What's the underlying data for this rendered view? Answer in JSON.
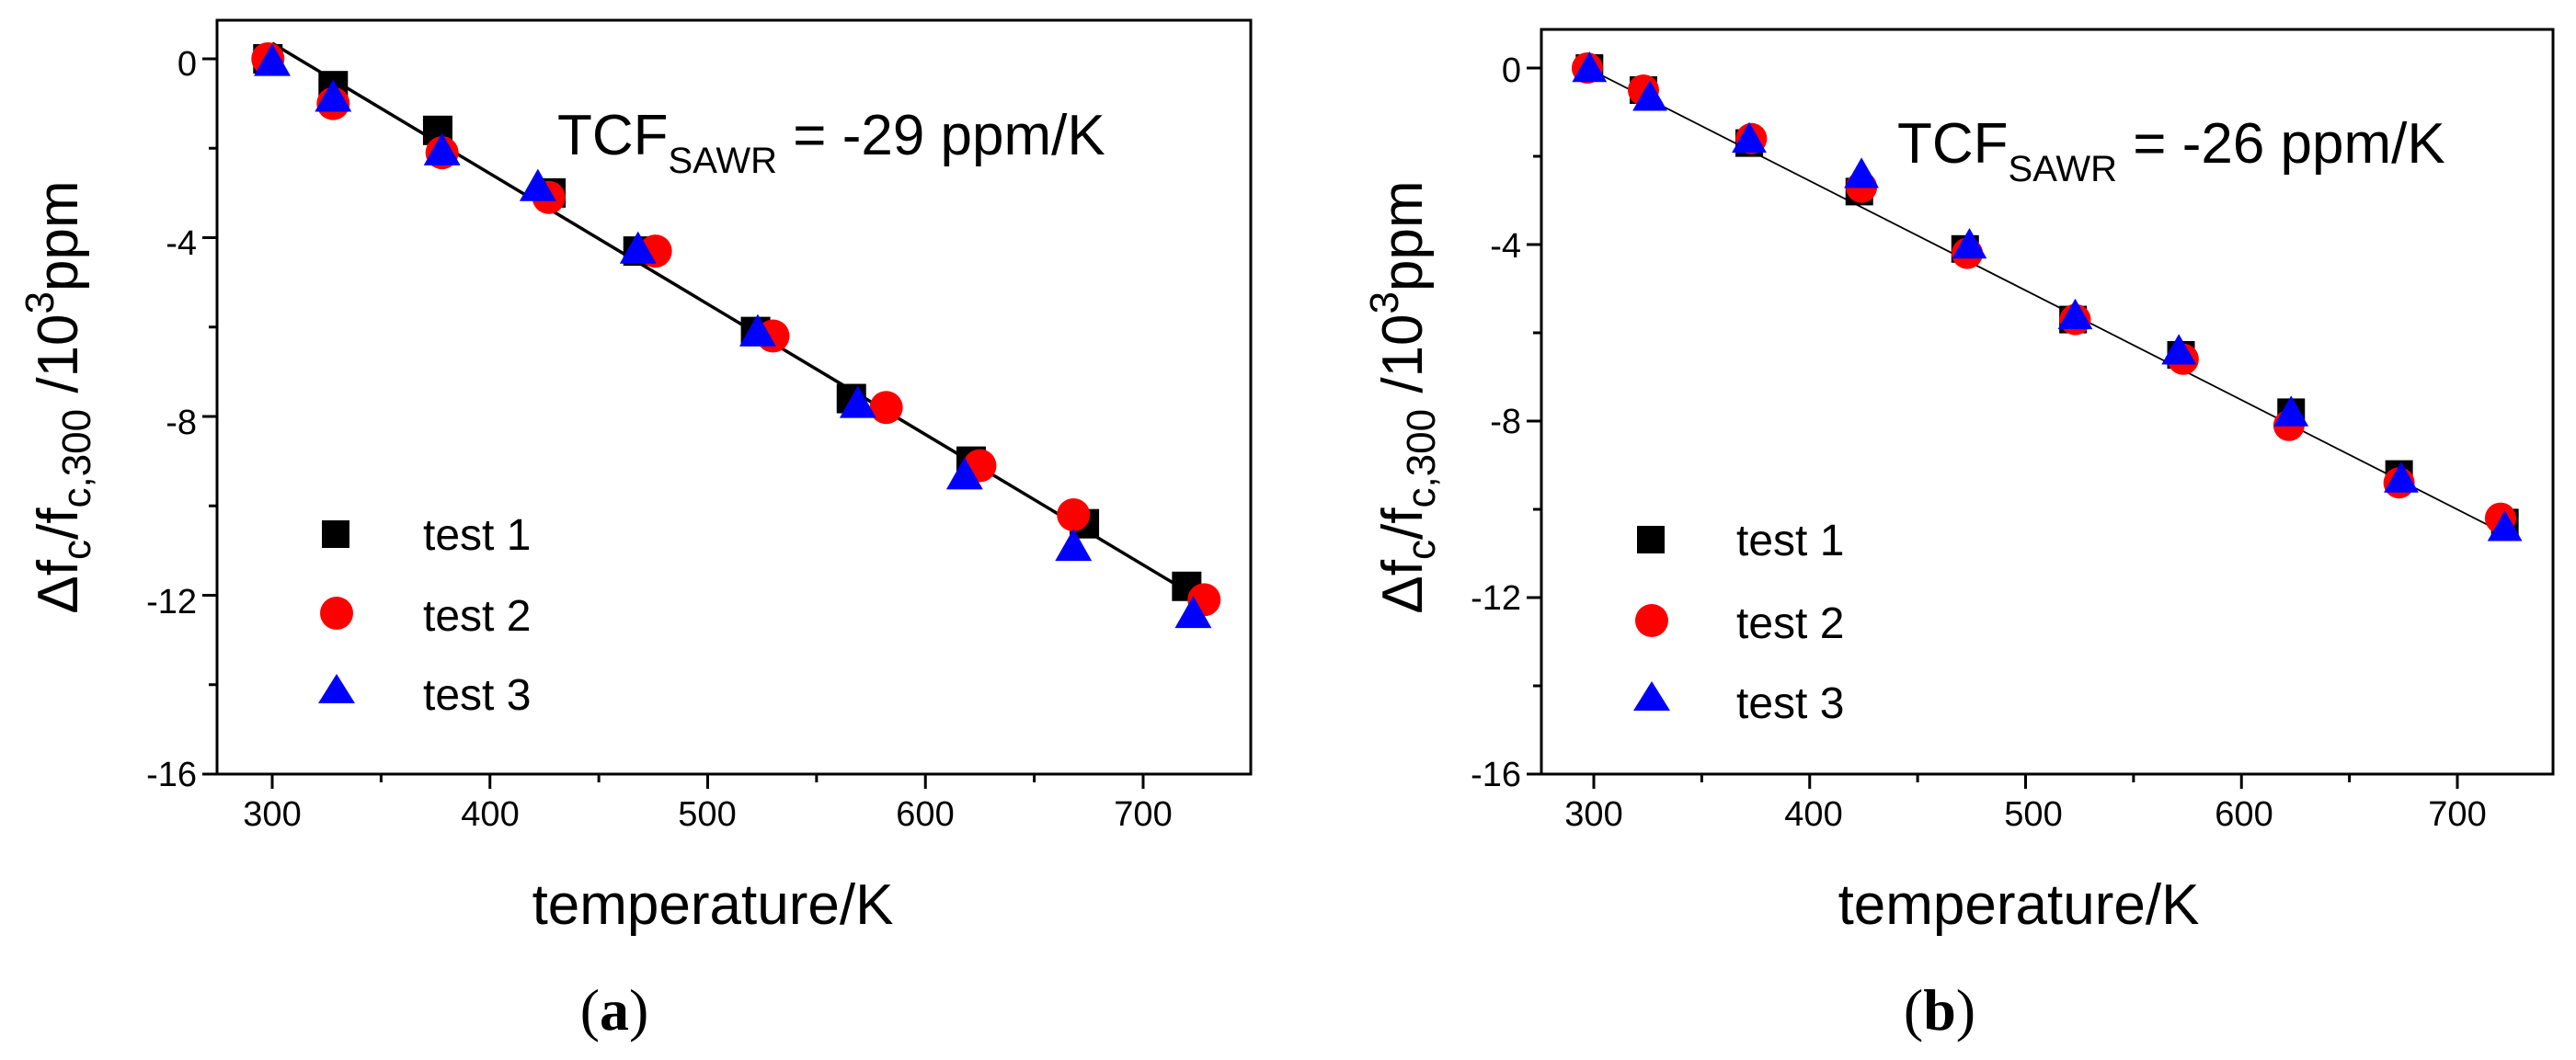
{
  "chart_data": [
    {
      "type": "scatter",
      "panel_label": {
        "open": "(",
        "letter": "a",
        "close": ")"
      },
      "xlabel": "temperature/K",
      "ylabel": {
        "parts": [
          "Δf",
          "c",
          "/f",
          "c,300",
          " /10",
          "3",
          "ppm"
        ]
      },
      "xlim": [
        275,
        750
      ],
      "ylim": [
        -16,
        0.8
      ],
      "xticks": [
        300,
        400,
        500,
        600,
        700
      ],
      "xtick_labels": [
        "300",
        "400",
        "500",
        "600",
        "700"
      ],
      "yticks": [
        0,
        -4,
        -8,
        -12,
        -16
      ],
      "ytick_labels": [
        "0",
        "-4",
        "-8",
        "-12",
        "-16"
      ],
      "minor_xticks": [
        350,
        450,
        550,
        650
      ],
      "minor_yticks": [
        -2,
        -6,
        -10,
        -14
      ],
      "annotation": {
        "prefix": "TCF",
        "sub": "SAWR",
        "suffix": " = -29 ppm/K"
      },
      "fit_line": {
        "x": [
          300,
          725
        ],
        "y": [
          0.35,
          -12.05
        ],
        "color": "#000000",
        "width": 3.5
      },
      "legend": {
        "position": "lower-left",
        "entries": [
          "test 1",
          "test 2",
          "test 3"
        ]
      },
      "series": [
        {
          "name": "test 1",
          "marker": "square",
          "color": "#000000",
          "points": [
            [
              298,
              0.0
            ],
            [
              328,
              -0.6
            ],
            [
              376,
              -1.6
            ],
            [
              428,
              -3.0
            ],
            [
              468,
              -4.3
            ],
            [
              522,
              -6.1
            ],
            [
              566,
              -7.6
            ],
            [
              621,
              -9.0
            ],
            [
              673,
              -10.4
            ],
            [
              720,
              -11.8
            ]
          ]
        },
        {
          "name": "test 2",
          "marker": "circle",
          "color": "#ff0000",
          "points": [
            [
              298,
              0.0
            ],
            [
              328,
              -1.0
            ],
            [
              378,
              -2.1
            ],
            [
              427,
              -3.1
            ],
            [
              476,
              -4.3
            ],
            [
              530,
              -6.2
            ],
            [
              582,
              -7.8
            ],
            [
              625,
              -9.1
            ],
            [
              668,
              -10.2
            ],
            [
              728,
              -12.1
            ]
          ]
        },
        {
          "name": "test 3",
          "marker": "triangle",
          "color": "#0000ff",
          "points": [
            [
              300,
              -0.05
            ],
            [
              328,
              -0.85
            ],
            [
              378,
              -2.05
            ],
            [
              422,
              -2.85
            ],
            [
              468,
              -4.25
            ],
            [
              523,
              -6.1
            ],
            [
              569,
              -7.7
            ],
            [
              618,
              -9.3
            ],
            [
              668,
              -10.9
            ],
            [
              723,
              -12.4
            ]
          ]
        }
      ]
    },
    {
      "type": "scatter",
      "panel_label": {
        "open": "(",
        "letter": "b",
        "close": ")"
      },
      "xlabel": "temperature/K",
      "ylabel": {
        "parts": [
          "Δf",
          "c",
          "/f",
          "c,300",
          " /10",
          "3",
          "ppm"
        ]
      },
      "xlim": [
        275,
        760
      ],
      "ylim": [
        -16,
        0.8
      ],
      "xticks": [
        300,
        400,
        500,
        600,
        700
      ],
      "xtick_labels": [
        "300",
        "400",
        "500",
        "600",
        "700"
      ],
      "yticks": [
        0,
        -4,
        -8,
        -12,
        -16
      ],
      "ytick_labels": [
        "0",
        "-4",
        "-8",
        "-12",
        "-16"
      ],
      "minor_xticks": [
        350,
        450,
        550,
        650
      ],
      "minor_yticks": [
        -2,
        -6,
        -10,
        -14
      ],
      "annotation": {
        "prefix": "TCF",
        "sub": "SAWR",
        "suffix": " = -26 ppm/K"
      },
      "fit_line": {
        "x": [
          297,
          724
        ],
        "y": [
          0.0,
          -10.6
        ],
        "color": "#000000",
        "width": 1.8
      },
      "legend": {
        "position": "lower-left",
        "entries": [
          "test 1",
          "test 2",
          "test 3"
        ]
      },
      "series": [
        {
          "name": "test 1",
          "marker": "square",
          "color": "#000000",
          "points": [
            [
              298,
              0.0
            ],
            [
              323,
              -0.5
            ],
            [
              372,
              -1.7
            ],
            [
              423,
              -2.8
            ],
            [
              472,
              -4.1
            ],
            [
              522,
              -5.7
            ],
            [
              572,
              -6.5
            ],
            [
              623,
              -7.8
            ],
            [
              673,
              -9.2
            ],
            [
              722,
              -10.3
            ]
          ]
        },
        {
          "name": "test 2",
          "marker": "circle",
          "color": "#ff0000",
          "points": [
            [
              297,
              0.0
            ],
            [
              323,
              -0.5
            ],
            [
              373,
              -1.6
            ],
            [
              424,
              -2.7
            ],
            [
              473,
              -4.2
            ],
            [
              523,
              -5.7
            ],
            [
              573,
              -6.6
            ],
            [
              622,
              -8.1
            ],
            [
              673,
              -9.4
            ],
            [
              720,
              -10.2
            ]
          ]
        },
        {
          "name": "test 3",
          "marker": "triangle",
          "color": "#0000ff",
          "points": [
            [
              298,
              0.0
            ],
            [
              326,
              -0.65
            ],
            [
              372,
              -1.6
            ],
            [
              424,
              -2.4
            ],
            [
              474,
              -4.0
            ],
            [
              523,
              -5.6
            ],
            [
              571,
              -6.4
            ],
            [
              623,
              -7.8
            ],
            [
              674,
              -9.3
            ],
            [
              722,
              -10.4
            ]
          ]
        }
      ]
    }
  ]
}
